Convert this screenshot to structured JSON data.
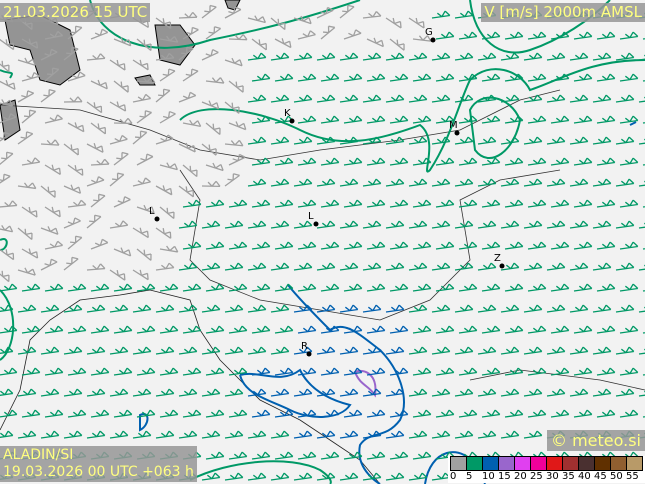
{
  "header": {
    "valid_time": "21.03.2026 15 UTC",
    "parameter": "V [m/s] 2000m AMSL"
  },
  "footer": {
    "model": "ALADIN/SI",
    "run": "19.03.2026 00 UTC +063 h",
    "copyright": "© meteo.si"
  },
  "legend": {
    "ticks": [
      "0",
      "5",
      "10",
      "15",
      "20",
      "25",
      "30",
      "35",
      "40",
      "45",
      "50",
      "55"
    ],
    "colors": [
      "#a0a0a0",
      "#009966",
      "#0060b0",
      "#9966cc",
      "#e040f0",
      "#f0009a",
      "#e01818",
      "#a03030",
      "#4a3030",
      "#603000",
      "#905f30",
      "#b89a68"
    ]
  },
  "cities": [
    {
      "label": "G"
    },
    {
      "label": "K"
    },
    {
      "label": "M"
    },
    {
      "label": "L"
    },
    {
      "label": "L"
    },
    {
      "label": "Z"
    },
    {
      "label": "R"
    }
  ]
}
